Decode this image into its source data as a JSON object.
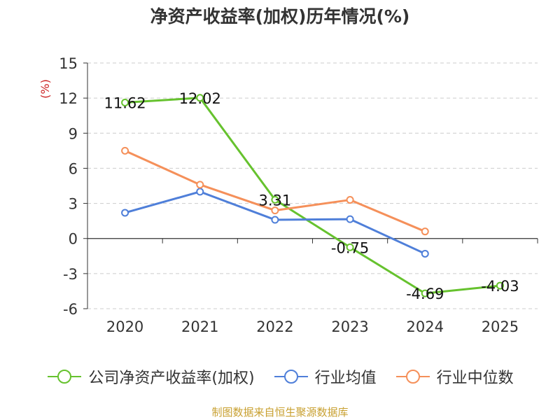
{
  "chart_data": {
    "type": "line",
    "title": "净资产收益率(加权)历年情况(%)",
    "ylabel": "(%)",
    "categories": [
      "2020",
      "2021",
      "2022",
      "2023",
      "2024",
      "2025"
    ],
    "ylim": [
      -6,
      15
    ],
    "yticks": [
      -6,
      -3,
      0,
      3,
      6,
      9,
      12,
      15
    ],
    "grid": true,
    "legend_position": "bottom",
    "series": [
      {
        "name": "公司净资产收益率(加权)",
        "color": "#66c22e",
        "values": [
          11.62,
          12.02,
          3.31,
          -0.75,
          -4.69,
          -4.03
        ],
        "labels": [
          "11.62",
          "12.02",
          "3.31",
          "-0.75",
          "-4.69",
          "-4.03"
        ]
      },
      {
        "name": "行业均值",
        "color": "#4f7fd9",
        "values": [
          2.2,
          4.0,
          1.6,
          1.65,
          -1.3,
          null
        ]
      },
      {
        "name": "行业中位数",
        "color": "#f5905a",
        "values": [
          7.5,
          4.6,
          2.4,
          3.3,
          0.6,
          null
        ]
      }
    ]
  },
  "source_note": "制图数据来自恒生聚源数据库"
}
